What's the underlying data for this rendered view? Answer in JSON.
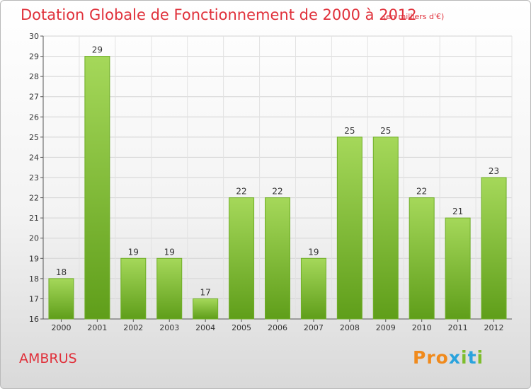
{
  "title": "Dotation Globale de Fonctionnement de 2000 à 2012",
  "subtitle": "(en milliers d'€)",
  "commune": "AMBRUS",
  "logo": {
    "letters": [
      "P",
      "r",
      "o",
      "x",
      "i",
      "t",
      "i"
    ]
  },
  "colors": {
    "title": "#e0313b",
    "bar_light": "#a5d85a",
    "bar_dark": "#5f9e1a",
    "logo": [
      "#f08a1c",
      "#f08a1c",
      "#f08a1c",
      "#2aa3dd",
      "#7dbd2c",
      "#2aa3dd",
      "#7dbd2c"
    ]
  },
  "chart_data": {
    "type": "bar",
    "title": "Dotation Globale de Fonctionnement de 2000 à 2012",
    "subtitle": "(en milliers d'€)",
    "categories": [
      "2000",
      "2001",
      "2002",
      "2003",
      "2004",
      "2005",
      "2006",
      "2007",
      "2008",
      "2009",
      "2010",
      "2011",
      "2012"
    ],
    "values": [
      18,
      29,
      19,
      19,
      17,
      22,
      22,
      19,
      25,
      25,
      22,
      21,
      23
    ],
    "ylim": [
      16,
      30
    ],
    "yticks": [
      16,
      17,
      18,
      19,
      20,
      21,
      22,
      23,
      24,
      25,
      26,
      27,
      28,
      29,
      30
    ],
    "xlabel": "",
    "ylabel": "",
    "grid": true
  }
}
